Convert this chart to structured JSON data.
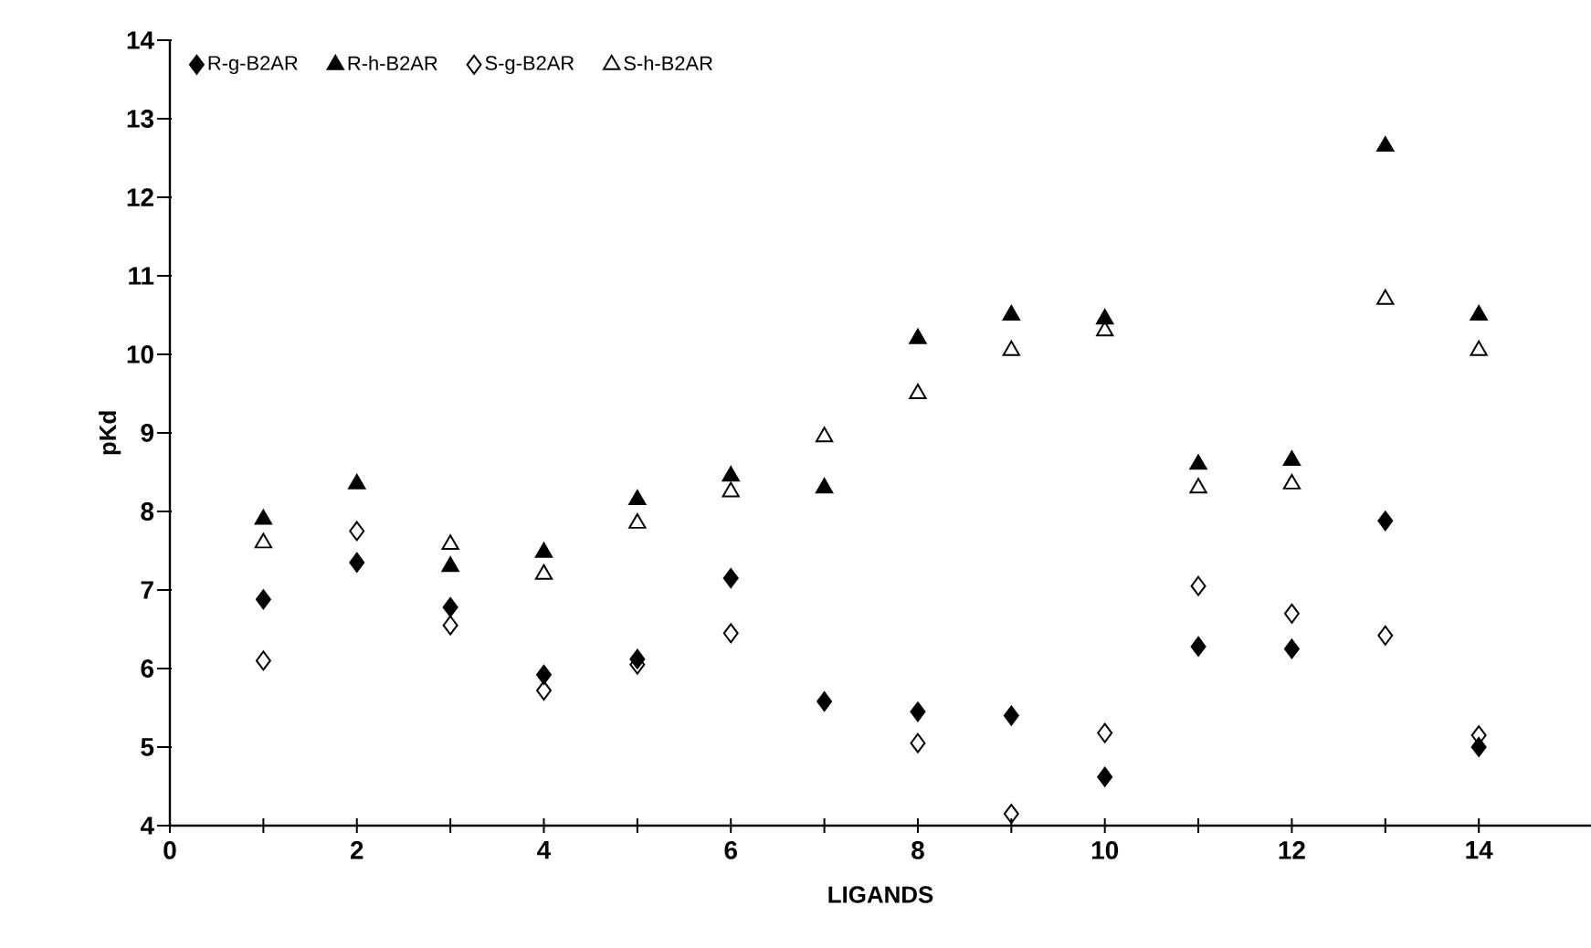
{
  "chart_data": {
    "type": "scatter",
    "xlabel": "LIGANDS",
    "ylabel": "pKd",
    "x": [
      1,
      2,
      3,
      4,
      5,
      6,
      7,
      8,
      9,
      10,
      11,
      12,
      13,
      14
    ],
    "series": [
      {
        "name": "R-g-B2AR",
        "color": "#000000",
        "marker": "diamond",
        "values": [
          6.88,
          7.35,
          6.78,
          5.92,
          6.12,
          7.15,
          5.58,
          5.45,
          5.4,
          4.62,
          6.28,
          6.25,
          7.88,
          5.0
        ]
      },
      {
        "name": "R-h-B2AR",
        "color": "#000000",
        "marker": "triangle",
        "values": [
          7.9,
          8.35,
          7.3,
          7.48,
          8.15,
          8.45,
          8.3,
          10.2,
          10.5,
          10.45,
          8.6,
          8.65,
          12.65,
          10.5
        ]
      },
      {
        "name": "S-g-B2AR",
        "color": "#000000",
        "marker": "diamond open",
        "values": [
          6.1,
          7.75,
          6.55,
          5.72,
          6.05,
          6.45,
          null,
          5.05,
          4.15,
          5.18,
          7.05,
          6.7,
          6.42,
          5.15
        ]
      },
      {
        "name": "S-h-B2AR",
        "color": "#000000",
        "marker": "triangle open",
        "values": [
          7.6,
          null,
          7.58,
          7.2,
          7.85,
          8.25,
          8.95,
          9.5,
          10.05,
          10.3,
          8.3,
          8.35,
          10.7,
          10.05
        ]
      }
    ],
    "xlim": [
      0,
      15.2
    ],
    "ylim": [
      4,
      14
    ],
    "xticks": [
      0,
      {
        "value": 1,
        "label": null
      },
      2,
      {
        "value": 3,
        "label": null
      },
      4,
      {
        "value": 5,
        "label": null
      },
      6,
      {
        "value": 7,
        "label": null
      },
      8,
      {
        "value": 9,
        "label": null
      },
      10,
      {
        "value": 11,
        "label": null
      },
      12,
      {
        "value": 13,
        "label": null
      },
      14
    ],
    "yticks": [
      4,
      5,
      6,
      7,
      8,
      9,
      10,
      11,
      12,
      13,
      14
    ],
    "grid": false,
    "legend": "top left"
  }
}
